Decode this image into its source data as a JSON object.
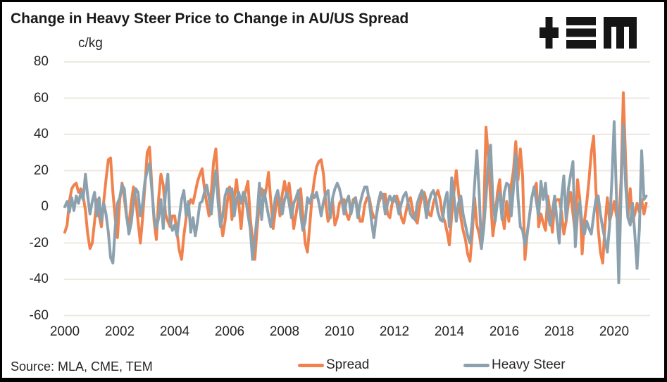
{
  "title": "Change in Heavy Steer Price to Change in AU/US Spread",
  "unit_label": "c/kg",
  "source": "Source: MLA, CME, TEM",
  "logo": {
    "glyphs": [
      "plus",
      "triple-bar",
      "m"
    ],
    "color": "#151515"
  },
  "colors": {
    "spread": "#F0824E",
    "heavy_steer": "#8CA1AE",
    "gridline": "#ECEAE0",
    "text": "#262626",
    "border": "#000000",
    "background": "#FFFFFF"
  },
  "legend": [
    {
      "label": "Spread",
      "color": "#F0824E"
    },
    {
      "label": "Heavy Steer",
      "color": "#8CA1AE"
    }
  ],
  "chart_data": {
    "type": "line",
    "title": "Change in Heavy Steer Price to Change in AU/US Spread",
    "xlabel": "",
    "ylabel": "c/kg",
    "ylim": [
      -60,
      80
    ],
    "y_ticks": [
      80,
      60,
      40,
      20,
      0,
      -20,
      -40,
      -60
    ],
    "x_ticks": [
      2000,
      2002,
      2004,
      2006,
      2008,
      2010,
      2012,
      2014,
      2016,
      2018,
      2020
    ],
    "x_start_year": 2000,
    "x_interval": "monthly",
    "grid": true,
    "legend_position": "bottom",
    "series": [
      {
        "name": "Spread",
        "color": "#F0824E",
        "values": [
          -14,
          -10,
          3,
          10,
          12,
          13,
          8,
          10,
          6,
          -2,
          -15,
          -23,
          -20,
          -8,
          4,
          -5,
          -11,
          3,
          15,
          26,
          27,
          8,
          -6,
          -17,
          4,
          13,
          5,
          -6,
          -10,
          2,
          11,
          4,
          -8,
          -20,
          -6,
          12,
          30,
          33,
          12,
          -8,
          -18,
          5,
          18,
          12,
          -4,
          -8,
          -11,
          -5,
          -5,
          -14,
          -24,
          -29,
          -16,
          -6,
          0,
          4,
          2,
          8,
          14,
          18,
          21,
          10,
          2,
          -5,
          8,
          25,
          32,
          10,
          -6,
          -16,
          -8,
          3,
          11,
          -7,
          5,
          15,
          2,
          -12,
          3,
          9,
          14,
          -6,
          -18,
          -29,
          -12,
          2,
          10,
          4,
          10,
          19,
          3,
          -12,
          -2,
          8,
          -5,
          7,
          14,
          6,
          13,
          2,
          -12,
          -4,
          4,
          10,
          -5,
          -20,
          -25,
          -10,
          5,
          15,
          22,
          25,
          26,
          18,
          2,
          -8,
          -5,
          3,
          -10,
          -6,
          2,
          4,
          4,
          -4,
          -7,
          -2,
          4,
          5,
          -2,
          -8,
          -8,
          1,
          5,
          5,
          -2,
          -6,
          -6,
          2,
          5,
          7,
          7,
          -4,
          -6,
          2,
          4,
          6,
          2,
          -6,
          -9,
          -3,
          3,
          5,
          -2,
          -7,
          -9,
          0,
          6,
          8,
          3,
          -4,
          -5,
          2,
          6,
          9,
          4,
          -5,
          -8,
          -14,
          -21,
          -5,
          8,
          20,
          8,
          -6,
          -13,
          -18,
          -26,
          -30,
          -15,
          5,
          -10,
          -15,
          -23,
          -5,
          44,
          28,
          4,
          -16,
          -6,
          8,
          15,
          -4,
          -12,
          3,
          -8,
          12,
          20,
          36,
          15,
          32,
          17,
          -29,
          -15,
          -5,
          5,
          10,
          13,
          -11,
          -4,
          -9,
          -13,
          6,
          -3,
          -14,
          2,
          4,
          4,
          -3,
          -15,
          -8,
          2,
          8,
          -4,
          -15,
          15,
          4,
          -26,
          -8,
          2,
          15,
          30,
          39,
          10,
          -12,
          -25,
          -31,
          -10,
          5,
          -8,
          -3,
          3,
          -5,
          -10,
          15,
          63,
          25,
          -6,
          10,
          -8,
          -4,
          2,
          -3,
          4,
          -4,
          2
        ]
      },
      {
        "name": "Heavy Steer",
        "color": "#8CA1AE",
        "values": [
          0,
          3,
          -3,
          5,
          -2,
          6,
          2,
          8,
          4,
          18,
          6,
          -4,
          3,
          8,
          -5,
          5,
          -8,
          2,
          -4,
          -14,
          -28,
          -31,
          -12,
          2,
          5,
          12,
          10,
          -5,
          -15,
          -9,
          2,
          10,
          8,
          -5,
          2,
          14,
          20,
          24,
          10,
          -6,
          -12,
          -6,
          4,
          -12,
          8,
          18,
          -8,
          -13,
          -10,
          -16,
          -6,
          4,
          9,
          -5,
          3,
          -14,
          -6,
          -16,
          -8,
          2,
          3,
          8,
          12,
          5,
          -4,
          10,
          20,
          2,
          -11,
          -5,
          6,
          10,
          8,
          10,
          -5,
          4,
          8,
          2,
          8,
          5,
          -4,
          -12,
          -29,
          -18,
          -5,
          13,
          -7,
          9,
          2,
          -5,
          -11,
          -3,
          5,
          9,
          2,
          -4,
          4,
          8,
          2,
          -6,
          2,
          5,
          9,
          -4,
          -13,
          -8,
          5,
          2,
          7,
          5,
          8,
          2,
          -5,
          3,
          7,
          9,
          -6,
          5,
          10,
          13,
          10,
          4,
          -4,
          3,
          6,
          -4,
          2,
          5,
          -6,
          2,
          7,
          11,
          11,
          3,
          -8,
          -17,
          -6,
          3,
          8,
          6,
          -4,
          2,
          6,
          3,
          6,
          2,
          -4,
          2,
          6,
          8,
          2,
          -4,
          -6,
          -7,
          2,
          6,
          9,
          4,
          -6,
          2,
          7,
          9,
          5,
          -3,
          -7,
          -8,
          3,
          8,
          -11,
          16,
          6,
          -8,
          2,
          6,
          -4,
          -10,
          -16,
          -20,
          -8,
          12,
          31,
          8,
          -23,
          -12,
          5,
          25,
          34,
          4,
          -8,
          3,
          8,
          -7,
          8,
          13,
          12,
          -5,
          10,
          29,
          5,
          -11,
          -13,
          -21,
          -15,
          -5,
          5,
          11,
          3,
          -5,
          14,
          4,
          13,
          -4,
          -10,
          -3,
          6,
          -8,
          -20,
          5,
          17,
          -7,
          10,
          18,
          25,
          -22,
          -4,
          3,
          -10,
          -15,
          -8,
          -12,
          -15,
          -5,
          4,
          6,
          -4,
          -12,
          -18,
          -25,
          -10,
          15,
          47,
          5,
          -42,
          8,
          45,
          12,
          -6,
          -10,
          2,
          -15,
          -34,
          -12,
          31,
          4,
          6
        ]
      }
    ]
  }
}
